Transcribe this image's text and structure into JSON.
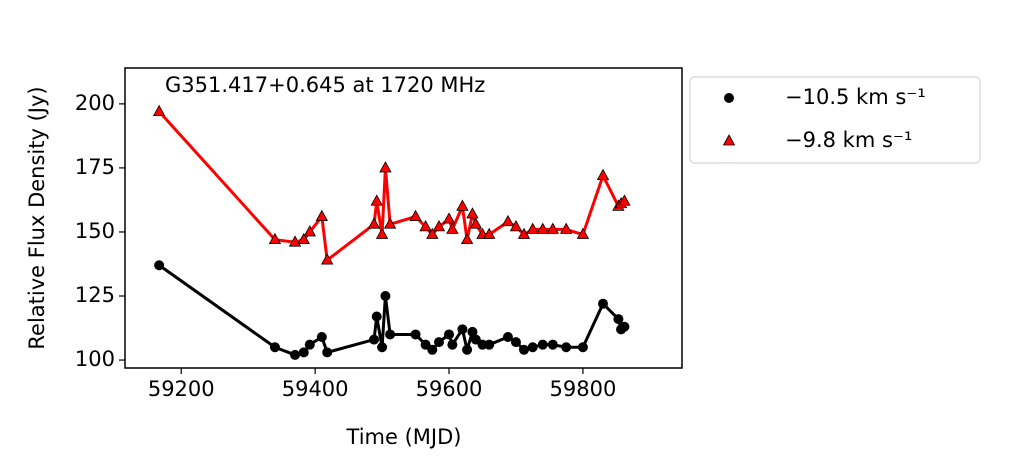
{
  "chart_data": {
    "type": "line",
    "annotation": "G351.417+0.645 at 1720 MHz",
    "x_label": "Time (MJD)",
    "y_label": "Relative Flux Density (Jy)",
    "x": [
      59167,
      59340,
      59370,
      59383,
      59392,
      59410,
      59418,
      59488,
      59492,
      59500,
      59505,
      59512,
      59550,
      59565,
      59575,
      59585,
      59600,
      59605,
      59620,
      59627,
      59635,
      59640,
      59650,
      59660,
      59688,
      59700,
      59712,
      59725,
      59740,
      59755,
      59775,
      59800,
      59830,
      59853,
      59857,
      59862
    ],
    "series": [
      {
        "name": "−10.5 km s⁻¹",
        "color": "#000000",
        "marker": "circle",
        "values": [
          137,
          105,
          102,
          103,
          106,
          109,
          103,
          108,
          117,
          105,
          125,
          110,
          110,
          106,
          104,
          107,
          110,
          106,
          112,
          104,
          111,
          108,
          106,
          106,
          109,
          107,
          104,
          105,
          106,
          106,
          105,
          105,
          122,
          116,
          112,
          113
        ]
      },
      {
        "name": "−9.8 km s⁻¹",
        "color": "#ff0000",
        "marker": "triangle",
        "values": [
          197,
          147,
          146,
          147,
          150,
          156,
          139,
          153,
          162,
          149,
          175,
          153,
          156,
          152,
          149,
          152,
          155,
          151,
          160,
          147,
          157,
          153,
          149,
          149,
          154,
          152,
          149,
          151,
          151,
          151,
          151,
          149,
          172,
          160,
          161,
          162
        ]
      }
    ],
    "xlim": [
      59116,
      59948
    ],
    "ylim": [
      96.9,
      214
    ],
    "xticks": [
      59200,
      59400,
      59600,
      59800
    ],
    "yticks": [
      100,
      125,
      150,
      175,
      200
    ],
    "legend": "outside-right"
  }
}
